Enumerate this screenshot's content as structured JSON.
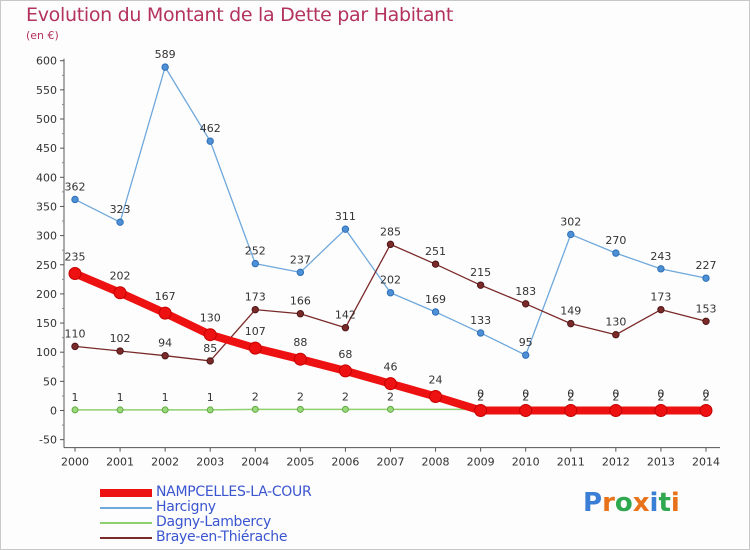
{
  "title": "Evolution du Montant de la Dette par Habitant",
  "subtitle": "(en €)",
  "logo": {
    "text": "Proxiti",
    "colors": [
      "#3a7fd5",
      "#e8731a",
      "#2fa84f",
      "#e8731a",
      "#3a7fd5",
      "#2fa84f",
      "#e8731a"
    ]
  },
  "chart_data": {
    "type": "line",
    "title": "Evolution du Montant de la Dette par Habitant",
    "ylabel": "(en €)",
    "ylim": [
      -50,
      600
    ],
    "yticks": [
      -50,
      0,
      50,
      100,
      150,
      200,
      250,
      300,
      350,
      400,
      450,
      500,
      550,
      600
    ],
    "categories": [
      "2000",
      "2001",
      "2002",
      "2003",
      "2004",
      "2005",
      "2006",
      "2007",
      "2008",
      "2009",
      "2010",
      "2011",
      "2012",
      "2013",
      "2014"
    ],
    "grid": false,
    "legend": "bottom-left",
    "series": [
      {
        "name": "Harcigny",
        "color": "#6fa8dc",
        "values": [
          362,
          323,
          589,
          462,
          252,
          237,
          311,
          202,
          169,
          133,
          95,
          302,
          270,
          243,
          227
        ]
      },
      {
        "name": "Braye-en-Thiérache",
        "color": "#7b2a2a",
        "values": [
          110,
          102,
          94,
          85,
          173,
          166,
          142,
          285,
          251,
          215,
          183,
          149,
          130,
          173,
          153
        ]
      },
      {
        "name": "Dagny-Lambercy",
        "color": "#8fd06e",
        "values": [
          1,
          1,
          1,
          1,
          2,
          2,
          2,
          2,
          null,
          2,
          2,
          2,
          2,
          2,
          2
        ]
      },
      {
        "name": "NAMPCELLES-LA-COUR",
        "color": "#ee1111",
        "values": [
          235,
          202,
          167,
          130,
          107,
          88,
          68,
          46,
          24,
          0,
          0,
          0,
          0,
          0,
          0
        ]
      }
    ]
  }
}
